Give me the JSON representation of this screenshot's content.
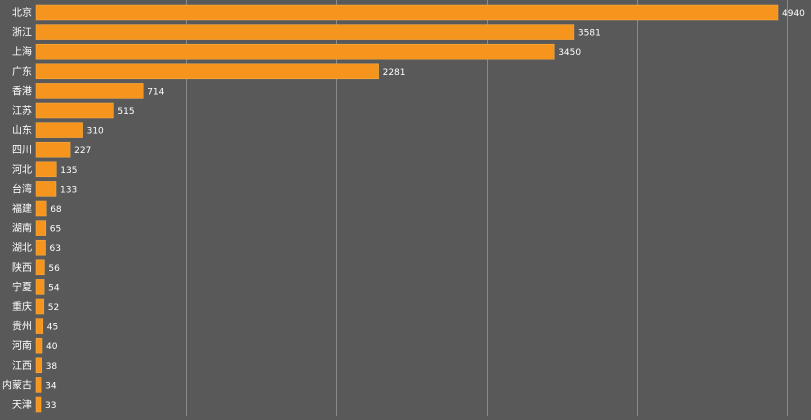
{
  "chart_data": {
    "type": "bar",
    "orientation": "horizontal",
    "categories": [
      "北京",
      "浙江",
      "上海",
      "广东",
      "香港",
      "江苏",
      "山东",
      "四川",
      "河北",
      "台湾",
      "福建",
      "湖南",
      "湖北",
      "陕西",
      "宁夏",
      "重庆",
      "贵州",
      "河南",
      "江西",
      "内蒙古",
      "天津"
    ],
    "values": [
      4940,
      3581,
      3450,
      2281,
      714,
      515,
      310,
      227,
      135,
      133,
      68,
      65,
      63,
      56,
      54,
      52,
      45,
      40,
      38,
      34,
      33
    ],
    "xlim": [
      0,
      5000
    ],
    "grid": true,
    "legend": "none",
    "colors": {
      "background": "#595959",
      "bar": "#f6951d",
      "bar_stroke": "#f9b04a",
      "grid": "#8a8a8a",
      "text": "#ffffff"
    }
  }
}
